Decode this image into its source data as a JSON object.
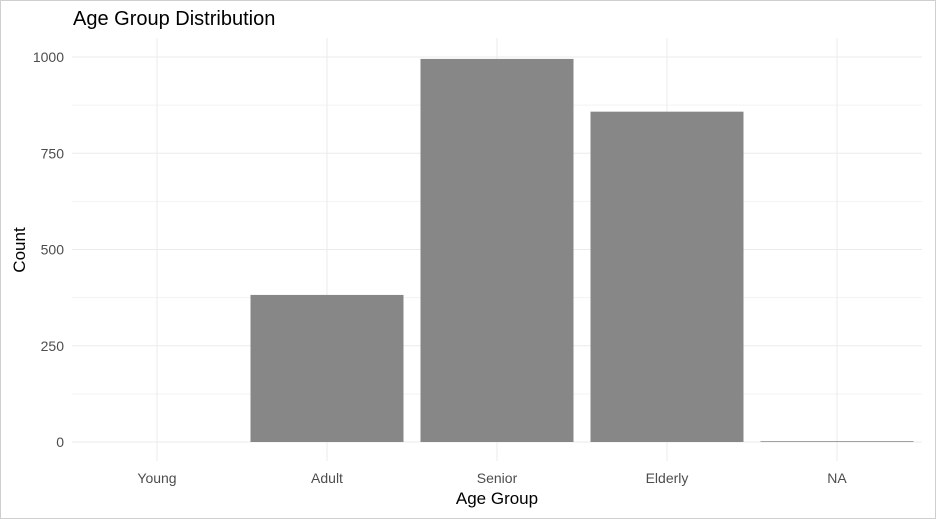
{
  "chart_data": {
    "type": "bar",
    "title": "Age Group Distribution",
    "xlabel": "Age Group",
    "ylabel": "Count",
    "categories": [
      "Young",
      "Adult",
      "Senior",
      "Elderly",
      "NA"
    ],
    "values": [
      0,
      382,
      995,
      858,
      2
    ],
    "ylim": [
      0,
      1030
    ],
    "y_ticks": [
      0,
      250,
      500,
      750,
      1000
    ],
    "grid": true,
    "bar_color": "#878787",
    "grid_color": "#ebebeb"
  }
}
